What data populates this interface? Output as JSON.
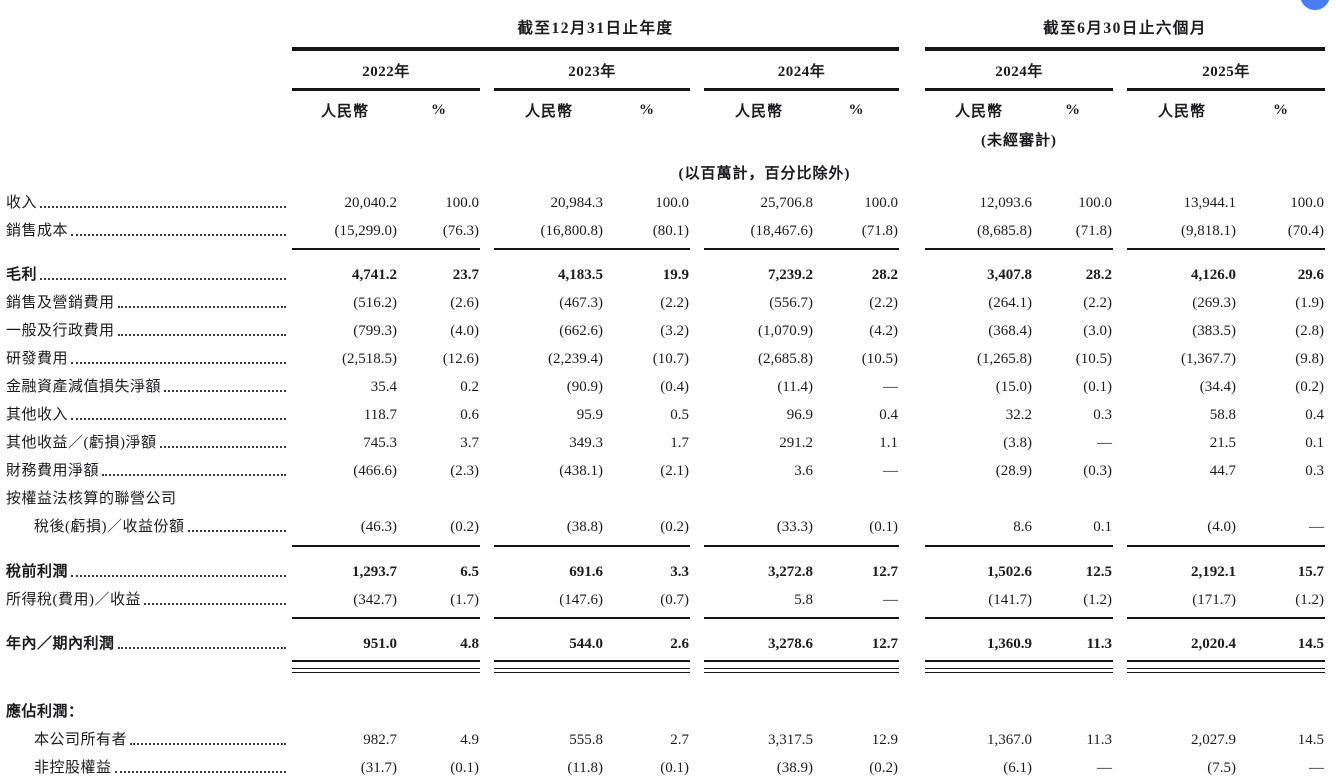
{
  "page": {
    "floating_button": "partially-visible-blue-circle",
    "accent_color": "#4b7df2",
    "text_color": "#1c1c1e"
  },
  "table": {
    "sections": [
      {
        "title": "截至12月31日止年度",
        "years": [
          "2022年",
          "2023年",
          "2024年"
        ]
      },
      {
        "title": "截至6月30日止六個月",
        "years": [
          "2024年",
          "2025年"
        ]
      }
    ],
    "currency_header": "人民幣",
    "percent_header": "%",
    "unaudited_note": "(未經審計)",
    "units_note": "(以百萬計，百分比除外)",
    "rows": [
      {
        "label": "收入",
        "leader": true,
        "values": [
          "20,040.2",
          "100.0",
          "20,984.3",
          "100.0",
          "25,706.8",
          "100.0",
          "12,093.6",
          "100.0",
          "13,944.1",
          "100.0"
        ]
      },
      {
        "label": "銷售成本",
        "leader": true,
        "rule_after": "single",
        "values": [
          "(15,299.0)",
          "(76.3)",
          "(16,800.8)",
          "(80.1)",
          "(18,467.6)",
          "(71.8)",
          "(8,685.8)",
          "(71.8)",
          "(9,818.1)",
          "(70.4)"
        ]
      },
      {
        "label": "毛利",
        "bold": true,
        "leader": true,
        "space": "sm",
        "values": [
          "4,741.2",
          "23.7",
          "4,183.5",
          "19.9",
          "7,239.2",
          "28.2",
          "3,407.8",
          "28.2",
          "4,126.0",
          "29.6"
        ]
      },
      {
        "label": "銷售及營銷費用",
        "leader": true,
        "values": [
          "(516.2)",
          "(2.6)",
          "(467.3)",
          "(2.2)",
          "(556.7)",
          "(2.2)",
          "(264.1)",
          "(2.2)",
          "(269.3)",
          "(1.9)"
        ]
      },
      {
        "label": "一般及行政費用",
        "leader": true,
        "values": [
          "(799.3)",
          "(4.0)",
          "(662.6)",
          "(3.2)",
          "(1,070.9)",
          "(4.2)",
          "(368.4)",
          "(3.0)",
          "(383.5)",
          "(2.8)"
        ]
      },
      {
        "label": "研發費用",
        "leader": true,
        "values": [
          "(2,518.5)",
          "(12.6)",
          "(2,239.4)",
          "(10.7)",
          "(2,685.8)",
          "(10.5)",
          "(1,265.8)",
          "(10.5)",
          "(1,367.7)",
          "(9.8)"
        ]
      },
      {
        "label": "金融資產減值損失淨額",
        "leader": true,
        "values": [
          "35.4",
          "0.2",
          "(90.9)",
          "(0.4)",
          "(11.4)",
          "—",
          "(15.0)",
          "(0.1)",
          "(34.4)",
          "(0.2)"
        ]
      },
      {
        "label": "其他收入",
        "leader": true,
        "values": [
          "118.7",
          "0.6",
          "95.9",
          "0.5",
          "96.9",
          "0.4",
          "32.2",
          "0.3",
          "58.8",
          "0.4"
        ]
      },
      {
        "label": "其他收益／(虧損)淨額",
        "leader": true,
        "values": [
          "745.3",
          "3.7",
          "349.3",
          "1.7",
          "291.2",
          "1.1",
          "(3.8)",
          "—",
          "21.5",
          "0.1"
        ]
      },
      {
        "label": "財務費用淨額",
        "leader": true,
        "values": [
          "(466.6)",
          "(2.3)",
          "(438.1)",
          "(2.1)",
          "3.6",
          "—",
          "(28.9)",
          "(0.3)",
          "44.7",
          "0.3"
        ]
      },
      {
        "label": "按權益法核算的聯營公司",
        "leader": false,
        "values": [
          "",
          "",
          "",
          "",
          "",
          "",
          "",
          "",
          "",
          ""
        ]
      },
      {
        "label": "稅後(虧損)／收益份額",
        "indent": true,
        "leader": true,
        "rule_after": "single",
        "values": [
          "(46.3)",
          "(0.2)",
          "(38.8)",
          "(0.2)",
          "(33.3)",
          "(0.1)",
          "8.6",
          "0.1",
          "(4.0)",
          "—"
        ]
      },
      {
        "label": "稅前利潤",
        "bold": true,
        "leader": true,
        "space": "sm",
        "rule_after": "none",
        "values": [
          "1,293.7",
          "6.5",
          "691.6",
          "3.3",
          "3,272.8",
          "12.7",
          "1,502.6",
          "12.5",
          "2,192.1",
          "15.7"
        ]
      },
      {
        "label": "所得稅(費用)／收益",
        "leader": true,
        "rule_after": "single",
        "values": [
          "(342.7)",
          "(1.7)",
          "(147.6)",
          "(0.7)",
          "5.8",
          "—",
          "(141.7)",
          "(1.2)",
          "(171.7)",
          "(1.2)"
        ]
      },
      {
        "label": "年內／期內利潤",
        "bold": true,
        "leader": true,
        "space": "sm",
        "rule_after": "triple",
        "values": [
          "951.0",
          "4.8",
          "544.0",
          "2.6",
          "3,278.6",
          "12.7",
          "1,360.9",
          "11.3",
          "2,020.4",
          "14.5"
        ]
      },
      {
        "label": "應佔利潤：",
        "bold": true,
        "leader": false,
        "space": "lg",
        "values": [
          "",
          "",
          "",
          "",
          "",
          "",
          "",
          "",
          "",
          ""
        ]
      },
      {
        "label": "本公司所有者",
        "indent": true,
        "leader": true,
        "values": [
          "982.7",
          "4.9",
          "555.8",
          "2.7",
          "3,317.5",
          "12.9",
          "1,367.0",
          "11.3",
          "2,027.9",
          "14.5"
        ]
      },
      {
        "label": "非控股權益",
        "indent": true,
        "leader": true,
        "values": [
          "(31.7)",
          "(0.1)",
          "(11.8)",
          "(0.1)",
          "(38.9)",
          "(0.2)",
          "(6.1)",
          "—",
          "(7.5)",
          "—"
        ]
      }
    ]
  }
}
